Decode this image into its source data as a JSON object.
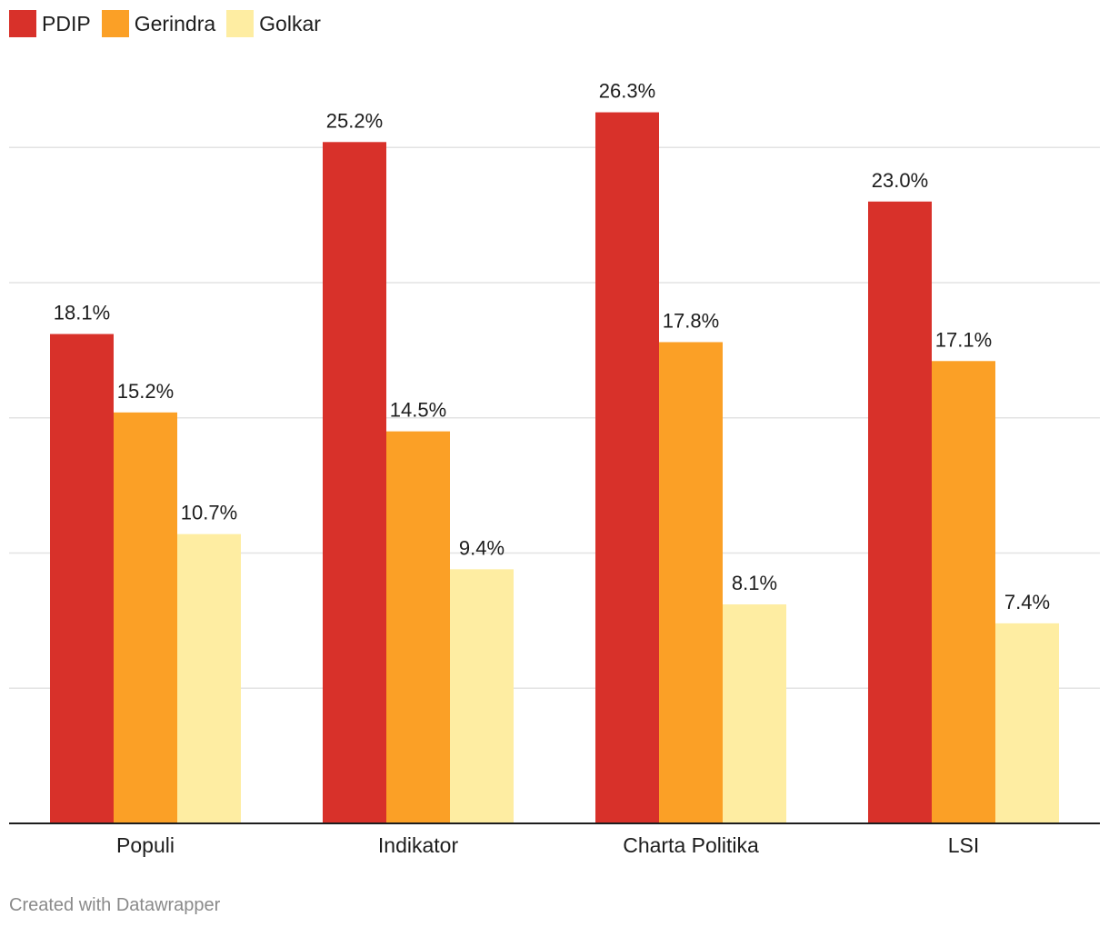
{
  "chart_data": {
    "type": "bar",
    "categories": [
      "Populi",
      "Indikator",
      "Charta Politika",
      "LSI"
    ],
    "series": [
      {
        "name": "PDIP",
        "color": "#d8312a",
        "values": [
          18.1,
          25.2,
          26.3,
          23.0
        ],
        "labels": [
          "18.1%",
          "25.2%",
          "26.3%",
          "23.0%"
        ]
      },
      {
        "name": "Gerindra",
        "color": "#fba026",
        "values": [
          15.2,
          14.5,
          17.8,
          17.1
        ],
        "labels": [
          "15.2%",
          "14.5%",
          "17.8%",
          "17.1%"
        ]
      },
      {
        "name": "Golkar",
        "color": "#feeda2",
        "values": [
          10.7,
          9.4,
          8.1,
          7.4
        ],
        "labels": [
          "10.7%",
          "9.4%",
          "8.1%",
          "7.4%"
        ]
      }
    ],
    "ylim": [
      0,
      25
    ],
    "gridlines": [
      5,
      10,
      15,
      20,
      25
    ],
    "grid": true,
    "legend": "top-left",
    "title": "",
    "xlabel": "",
    "ylabel": ""
  },
  "footer": {
    "credit": "Created with Datawrapper"
  }
}
